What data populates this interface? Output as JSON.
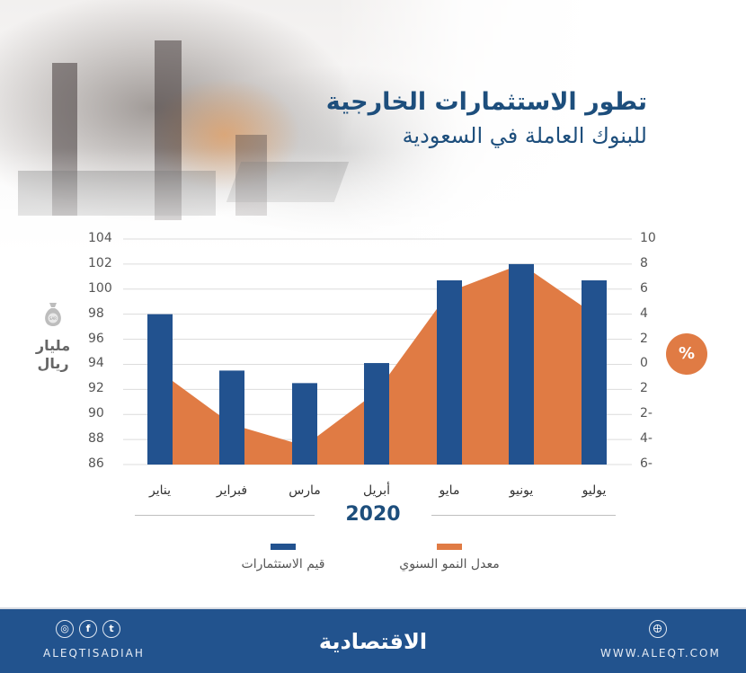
{
  "header": {
    "title_line1": "تطور الاستثمارات الخارجية",
    "title_line2": "للبنوك العاملة في السعودية"
  },
  "axes": {
    "left_unit_line1": "مليار",
    "left_unit_line2": "ريال",
    "left_unit_icon": "money-bag-icon",
    "left_ticks": [
      "104",
      "102",
      "100",
      "98",
      "96",
      "94",
      "92",
      "90",
      "88",
      "86"
    ],
    "right_ticks": [
      "10",
      "8",
      "6",
      "4",
      "2",
      "0",
      "2",
      "2-",
      "4-",
      "6-"
    ],
    "right_unit": "%",
    "year": "2020"
  },
  "legend": {
    "investments": "قيم الاستثمارات",
    "growth": "معدل النمو السنوي"
  },
  "colors": {
    "bar": "#22528f",
    "area": "#e07b44",
    "title": "#1d4e7c",
    "footer": "#22538e"
  },
  "footer": {
    "social_icons": [
      "instagram-icon",
      "facebook-icon",
      "twitter-icon"
    ],
    "handle": "ALEQTISADIAH",
    "logo": "الاقتصادية",
    "website_icon": "globe-icon",
    "url": "WWW.ALEQT.COM"
  },
  "chart_data": {
    "type": "bar",
    "title": "تطور الاستثمارات الخارجية للبنوك العاملة في السعودية",
    "categories": [
      "يناير",
      "فبراير",
      "مارس",
      "أبريل",
      "مايو",
      "يونيو",
      "يوليو"
    ],
    "categories_display_order_ltr": [
      "يوليو",
      "يونيو",
      "مايو",
      "أبريل",
      "مارس",
      "فبراير",
      "يناير"
    ],
    "xlabel": "2020",
    "series": [
      {
        "name": "قيم الاستثمارات",
        "type": "bar",
        "axis": "left",
        "unit": "مليار ريال",
        "values": [
          98.0,
          93.5,
          92.5,
          94.1,
          100.7,
          102.0,
          100.7
        ]
      },
      {
        "name": "معدل النمو السنوي",
        "type": "area",
        "axis": "right",
        "unit": "%",
        "values": [
          -0.6,
          -4.8,
          -6.5,
          -2.2,
          5.8,
          8.0,
          4.0
        ]
      }
    ],
    "ylim_left": [
      86,
      104
    ],
    "ylim_right": [
      -8,
      10
    ],
    "grid": true,
    "legend_position": "bottom"
  }
}
